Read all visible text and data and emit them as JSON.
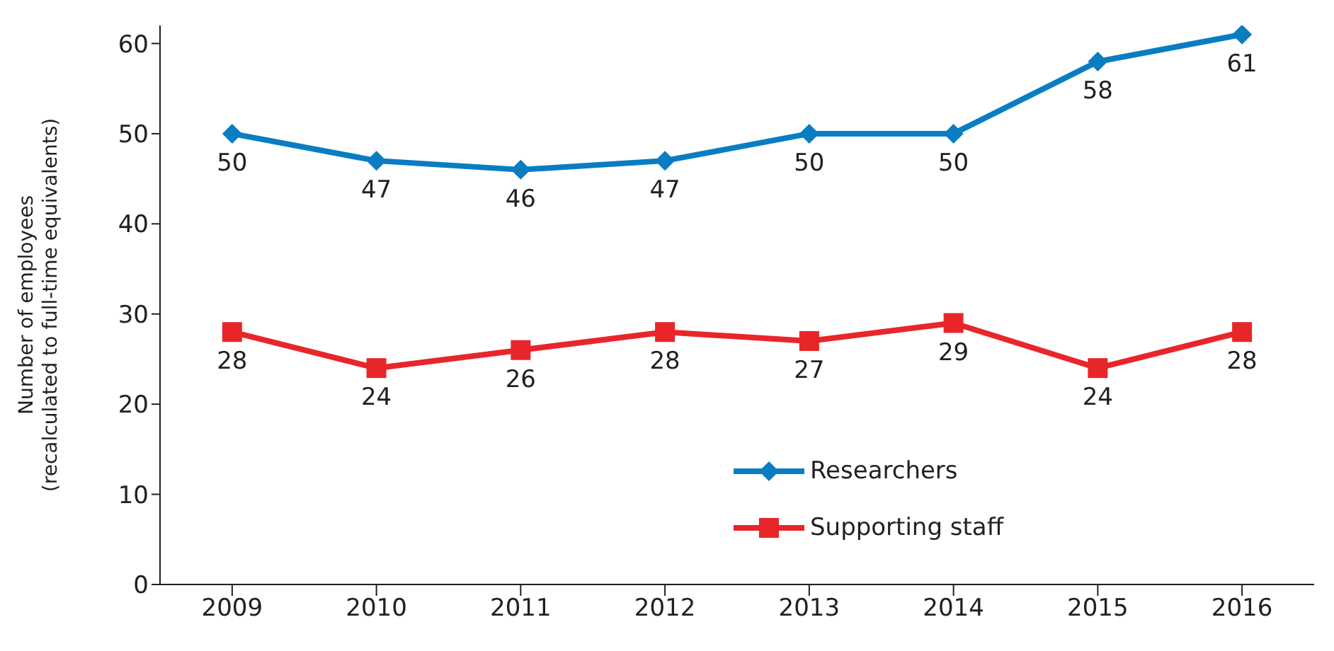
{
  "chart_data": {
    "type": "line",
    "ylabel": "Number of employees\n(recalculated to full-time equivalents)",
    "categories": [
      "2009",
      "2010",
      "2011",
      "2012",
      "2013",
      "2014",
      "2015",
      "2016"
    ],
    "series": [
      {
        "name": "Researchers",
        "color": "#0a7dc2",
        "marker": "diamond",
        "values": [
          50,
          47,
          46,
          47,
          50,
          50,
          58,
          61
        ]
      },
      {
        "name": "Supporting staff",
        "color": "#e8262a",
        "marker": "square",
        "values": [
          28,
          24,
          26,
          28,
          27,
          29,
          24,
          28
        ]
      }
    ],
    "ylim": [
      0,
      62
    ],
    "yticks": [
      0,
      10,
      20,
      30,
      40,
      50,
      60
    ],
    "grid": false,
    "legend": "bottom",
    "data_labels": true,
    "line_style": "solid"
  }
}
